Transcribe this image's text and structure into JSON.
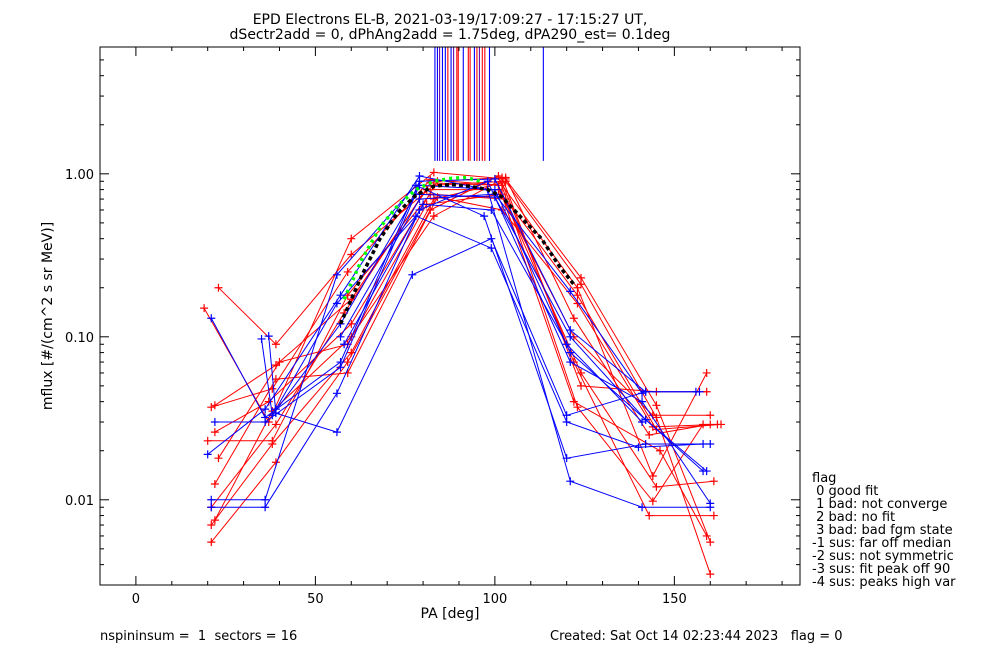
{
  "chart_data": {
    "type": "line",
    "title": "EPD Electrons EL-B, 2021-03-19/17:09:27 - 17:15:27 UT,",
    "subtitle": "dSectr2add = 0, dPhAng2add = 1.75deg, dPA290_est=   0.1deg",
    "xlabel": "PA [deg]",
    "ylabel": "mflux [#/(cm^2 s sr MeV)]",
    "xlim": [
      -10,
      185
    ],
    "ylim": [
      0.003,
      6.0
    ],
    "yscale": "log",
    "x_ticks": [
      0,
      50,
      100,
      150
    ],
    "x_tick_labels": [
      "0",
      "50",
      "100",
      "150"
    ],
    "y_ticks": [
      0.01,
      0.1,
      1.0
    ],
    "y_tick_labels": [
      "0.01",
      "0.10",
      "1.00"
    ],
    "colors": {
      "blue": "#0000ff",
      "red": "#ff0000",
      "green": "#00ff00",
      "black": "#000000"
    },
    "blue_series": [
      [
        [
          21,
          0.13
        ],
        [
          36,
          0.032
        ],
        [
          57,
          0.07
        ],
        [
          79,
          0.9
        ],
        [
          100,
          0.93
        ],
        [
          121,
          0.11
        ],
        [
          142,
          0.046
        ],
        [
          156,
          0.046
        ]
      ],
      [
        [
          22,
          0.03
        ],
        [
          36,
          0.03
        ],
        [
          57,
          0.065
        ],
        [
          79,
          0.85
        ],
        [
          100,
          0.8
        ],
        [
          121,
          0.08
        ],
        [
          142,
          0.031
        ],
        [
          159,
          0.015
        ]
      ],
      [
        [
          20,
          0.019
        ],
        [
          36,
          0.036
        ],
        [
          57,
          0.18
        ],
        [
          79,
          0.97
        ],
        [
          98,
          0.8
        ],
        [
          121,
          0.013
        ],
        [
          141,
          0.009
        ],
        [
          160,
          0.009
        ]
      ],
      [
        [
          21,
          0.01
        ],
        [
          36,
          0.01
        ],
        [
          56,
          0.24
        ],
        [
          78,
          0.85
        ],
        [
          97,
          0.55
        ],
        [
          120,
          0.018
        ],
        [
          142,
          0.022
        ],
        [
          160,
          0.022
        ]
      ],
      [
        [
          21,
          0.009
        ],
        [
          36,
          0.009
        ],
        [
          56,
          0.045
        ],
        [
          79,
          0.6
        ],
        [
          98,
          0.9
        ],
        [
          121,
          0.07
        ],
        [
          141,
          0.04
        ],
        [
          160,
          0.0095
        ]
      ],
      [
        [
          35,
          0.097
        ],
        [
          38,
          0.033
        ],
        [
          57,
          0.12
        ],
        [
          78,
          0.75
        ],
        [
          100,
          0.72
        ],
        [
          121,
          0.1
        ],
        [
          142,
          0.031
        ],
        [
          158,
          0.015
        ]
      ],
      [
        [
          37,
          0.101
        ],
        [
          39,
          0.034
        ],
        [
          56,
          0.026
        ],
        [
          77,
          0.24
        ],
        [
          99,
          0.4
        ],
        [
          120,
          0.033
        ],
        [
          142,
          0.046
        ],
        [
          157,
          0.046
        ]
      ],
      [
        [
          39,
          0.036
        ],
        [
          56,
          0.16
        ],
        [
          78,
          0.55
        ],
        [
          99,
          0.35
        ],
        [
          120,
          0.03
        ],
        [
          140,
          0.021
        ],
        [
          158,
          0.022
        ]
      ],
      [
        [
          57,
          0.1
        ],
        [
          79,
          0.7
        ],
        [
          100,
          0.75
        ],
        [
          121,
          0.19
        ],
        [
          141,
          0.045
        ]
      ],
      [
        [
          58,
          0.09
        ],
        [
          80,
          0.65
        ],
        [
          99,
          0.6
        ],
        [
          120,
          0.09
        ],
        [
          141,
          0.03
        ]
      ]
    ],
    "red_series": [
      [
        [
          19,
          0.15
        ],
        [
          37,
          0.03
        ],
        [
          60,
          0.4
        ],
        [
          83,
          1.02
        ],
        [
          103,
          0.93
        ],
        [
          124,
          0.23
        ],
        [
          145,
          0.038
        ],
        [
          160,
          0.0055
        ]
      ],
      [
        [
          23,
          0.2
        ],
        [
          39,
          0.09
        ],
        [
          60,
          0.32
        ],
        [
          83,
          0.85
        ],
        [
          103,
          0.9
        ],
        [
          124,
          0.21
        ],
        [
          145,
          0.032
        ],
        [
          160,
          0.0035
        ]
      ],
      [
        [
          21,
          0.037
        ],
        [
          38,
          0.048
        ],
        [
          59,
          0.25
        ],
        [
          82,
          0.92
        ],
        [
          102,
          0.85
        ],
        [
          123,
          0.2
        ],
        [
          144,
          0.014
        ],
        [
          159,
          0.06
        ]
      ],
      [
        [
          22,
          0.038
        ],
        [
          39,
          0.067
        ],
        [
          60,
          0.17
        ],
        [
          81,
          0.8
        ],
        [
          101,
          0.8
        ],
        [
          122,
          0.1
        ],
        [
          144,
          0.033
        ],
        [
          160,
          0.033
        ]
      ],
      [
        [
          20,
          0.023
        ],
        [
          38,
          0.023
        ],
        [
          59,
          0.18
        ],
        [
          82,
          0.75
        ],
        [
          103,
          0.7
        ],
        [
          123,
          0.18
        ],
        [
          145,
          0.027
        ],
        [
          163,
          0.029
        ]
      ],
      [
        [
          22,
          0.026
        ],
        [
          37,
          0.04
        ],
        [
          60,
          0.12
        ],
        [
          84,
          0.9
        ],
        [
          102,
          0.95
        ],
        [
          124,
          0.05
        ],
        [
          145,
          0.046
        ],
        [
          159,
          0.046
        ]
      ],
      [
        [
          21,
          0.007
        ],
        [
          38,
          0.022
        ],
        [
          60,
          0.08
        ],
        [
          83,
          0.7
        ],
        [
          102,
          0.88
        ],
        [
          122,
          0.07
        ],
        [
          143,
          0.008
        ],
        [
          161,
          0.008
        ]
      ],
      [
        [
          21,
          0.0055
        ],
        [
          39,
          0.017
        ],
        [
          59,
          0.07
        ],
        [
          82,
          0.6
        ],
        [
          101,
          0.97
        ],
        [
          123,
          0.037
        ],
        [
          144,
          0.0098
        ],
        [
          158,
          0.029
        ]
      ],
      [
        [
          23,
          0.018
        ],
        [
          40,
          0.07
        ],
        [
          59,
          0.09
        ],
        [
          81,
          0.65
        ],
        [
          102,
          0.75
        ],
        [
          124,
          0.06
        ],
        [
          145,
          0.012
        ],
        [
          161,
          0.013
        ]
      ],
      [
        [
          22,
          0.0075
        ],
        [
          38,
          0.035
        ],
        [
          60,
          0.1
        ],
        [
          83,
          0.55
        ],
        [
          103,
          0.95
        ],
        [
          122,
          0.13
        ],
        [
          143,
          0.025
        ],
        [
          160,
          0.029
        ]
      ],
      [
        [
          22,
          0.0125
        ],
        [
          39,
          0.055
        ],
        [
          59,
          0.06
        ],
        [
          84,
          0.72
        ],
        [
          102,
          0.6
        ],
        [
          123,
          0.16
        ],
        [
          144,
          0.028
        ],
        [
          162,
          0.029
        ]
      ],
      [
        [
          21,
          0.009
        ],
        [
          39,
          0.029
        ],
        [
          58,
          0.14
        ],
        [
          82,
          0.88
        ],
        [
          101,
          0.85
        ],
        [
          122,
          0.04
        ],
        [
          146,
          0.02
        ],
        [
          159,
          0.006
        ]
      ]
    ],
    "green_series": [
      [
        58,
        0.17
      ],
      [
        63,
        0.3
      ],
      [
        68,
        0.47
      ],
      [
        73,
        0.64
      ],
      [
        78,
        0.8
      ],
      [
        83,
        0.9
      ],
      [
        88,
        0.94
      ],
      [
        92,
        0.95
      ],
      [
        96,
        0.9
      ]
    ],
    "black_series": [
      [
        57,
        0.12
      ],
      [
        63,
        0.24
      ],
      [
        68,
        0.4
      ],
      [
        73,
        0.58
      ],
      [
        78,
        0.74
      ],
      [
        83,
        0.84
      ],
      [
        88,
        0.86
      ],
      [
        93,
        0.84
      ],
      [
        98,
        0.8
      ],
      [
        102,
        0.72
      ],
      [
        108,
        0.52
      ],
      [
        113,
        0.4
      ],
      [
        118,
        0.27
      ],
      [
        122,
        0.21
      ]
    ],
    "marker_lines": [
      {
        "x": 83.3,
        "color": "blue"
      },
      {
        "x": 84.0,
        "color": "blue"
      },
      {
        "x": 84.6,
        "color": "#6a0dad"
      },
      {
        "x": 85.4,
        "color": "blue"
      },
      {
        "x": 86.2,
        "color": "blue"
      },
      {
        "x": 86.9,
        "color": "red"
      },
      {
        "x": 87.8,
        "color": "blue"
      },
      {
        "x": 88.5,
        "color": "#6a0dad"
      },
      {
        "x": 89.4,
        "color": "red"
      },
      {
        "x": 89.8,
        "color": "red"
      },
      {
        "x": 91.2,
        "color": "blue"
      },
      {
        "x": 92.6,
        "color": "red"
      },
      {
        "x": 93.1,
        "color": "red"
      },
      {
        "x": 94.3,
        "color": "blue"
      },
      {
        "x": 95.0,
        "color": "red"
      },
      {
        "x": 95.7,
        "color": "#6a0dad"
      },
      {
        "x": 96.5,
        "color": "red"
      },
      {
        "x": 97.2,
        "color": "red"
      },
      {
        "x": 98.5,
        "color": "blue"
      },
      {
        "x": 113.5,
        "color": "blue"
      }
    ],
    "legend": {
      "placement": "right",
      "title": "flag",
      "entries": [
        " 0 good fit",
        " 1 bad: not converge",
        " 2 bad: no fit",
        " 3 bad: bad fgm state",
        "-1 sus: far off median",
        "-2 sus: not symmetric",
        "-3 sus: fit peak off 90",
        "-4 sus: peaks high var"
      ]
    },
    "footer": {
      "left": "nspininsum =  1  sectors = 16",
      "right": "Created: Sat Oct 14 02:23:44 2023   flag = 0"
    }
  }
}
